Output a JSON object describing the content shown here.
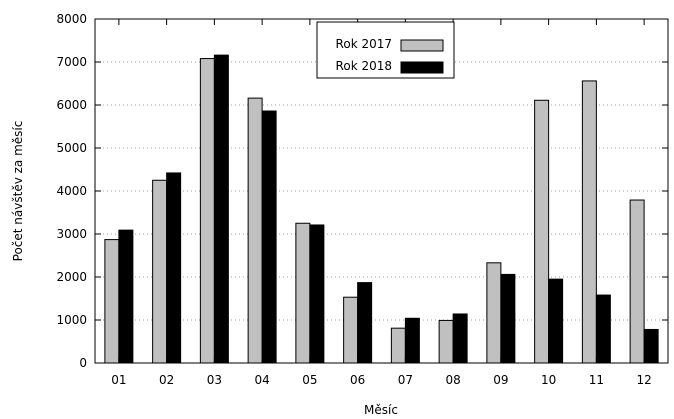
{
  "chart_data": {
    "type": "bar",
    "title": "",
    "xlabel": "Měsíc",
    "ylabel": "Počet návštěv za měsíc",
    "categories": [
      "01",
      "02",
      "03",
      "04",
      "05",
      "06",
      "07",
      "08",
      "09",
      "10",
      "11",
      "12"
    ],
    "ylim": [
      0,
      8000
    ],
    "yticks": [
      "0",
      "1000",
      "2000",
      "3000",
      "4000",
      "5000",
      "6000",
      "7000",
      "8000"
    ],
    "grid": true,
    "legend_position": "top-center",
    "series": [
      {
        "name": "Rok 2017",
        "color": "#c0c0c0",
        "values": [
          2870,
          4250,
          7080,
          6160,
          3250,
          1530,
          810,
          990,
          2330,
          6110,
          6560,
          3790
        ]
      },
      {
        "name": "Rok 2018",
        "color": "#000000",
        "values": [
          3090,
          4420,
          7160,
          5860,
          3210,
          1870,
          1040,
          1140,
          2060,
          1950,
          1580,
          780
        ]
      }
    ]
  }
}
